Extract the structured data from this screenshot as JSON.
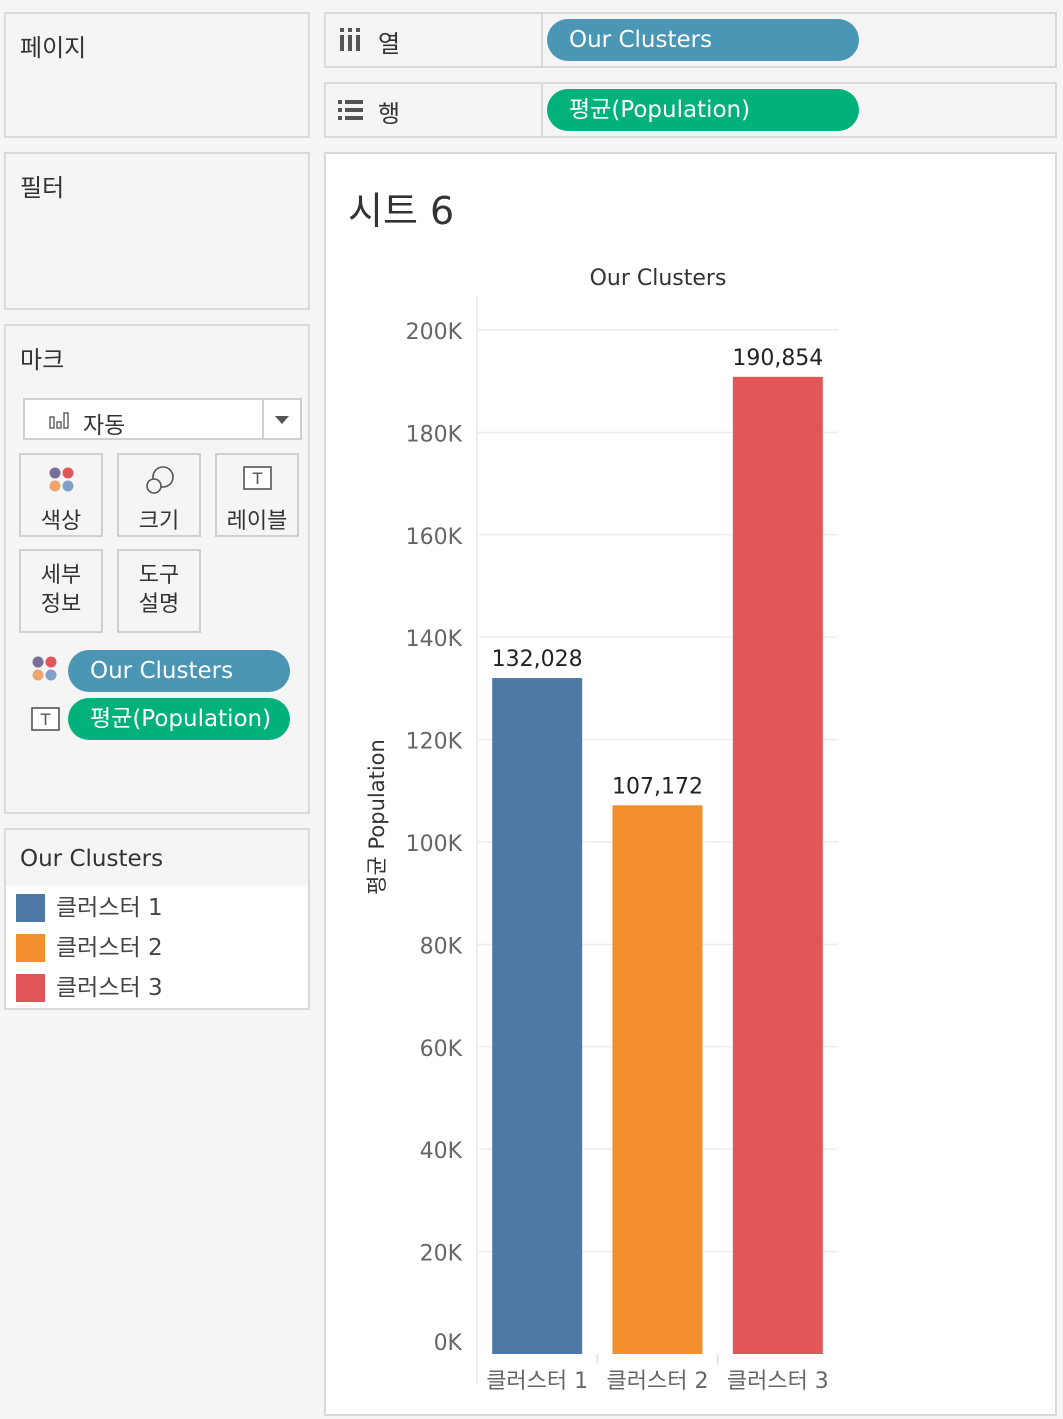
{
  "top_tabs": [],
  "panels": {
    "pages": {
      "title": "페이지"
    },
    "filters": {
      "title": "필터"
    },
    "marks": {
      "title": "마크",
      "mark_type": "자동",
      "buttons": {
        "color": "색상",
        "size": "크기",
        "label": "레이블",
        "detail_line1": "세부",
        "detail_line2": "정보",
        "tooltip_line1": "도구",
        "tooltip_line2": "설명"
      },
      "fields": [
        {
          "name": "Our Clusters",
          "kind": "color"
        },
        {
          "name": "평균(Population)",
          "kind": "label"
        }
      ]
    },
    "legend": {
      "title": "Our Clusters",
      "items": [
        {
          "label": "클러스터 1",
          "color": "#4e79a7"
        },
        {
          "label": "클러스터 2",
          "color": "#f28e2b"
        },
        {
          "label": "클러스터 3",
          "color": "#e15759"
        }
      ]
    }
  },
  "shelves": {
    "columns": {
      "label": "열",
      "pill": "Our Clusters"
    },
    "rows": {
      "label": "행",
      "pill": "평균(Population)"
    }
  },
  "sheet": {
    "title": "시트 6"
  },
  "chart_data": {
    "type": "bar",
    "title": "Our Clusters",
    "ylabel": "평균 Population",
    "xlabel": "",
    "categories": [
      "클러스터 1",
      "클러스터 2",
      "클러스터 3"
    ],
    "values": [
      132028,
      107172,
      190854
    ],
    "value_labels": [
      "132,028",
      "107,172",
      "190,854"
    ],
    "colors": [
      "#4e79a7",
      "#f28e2b",
      "#e15759"
    ],
    "ylim": [
      0,
      200000
    ],
    "yticks": [
      0,
      20000,
      40000,
      60000,
      80000,
      100000,
      120000,
      140000,
      160000,
      180000,
      200000
    ],
    "ytick_labels": [
      "0K",
      "20K",
      "40K",
      "60K",
      "80K",
      "100K",
      "120K",
      "140K",
      "160K",
      "180K",
      "200K"
    ],
    "grid": true,
    "legend": "none"
  }
}
